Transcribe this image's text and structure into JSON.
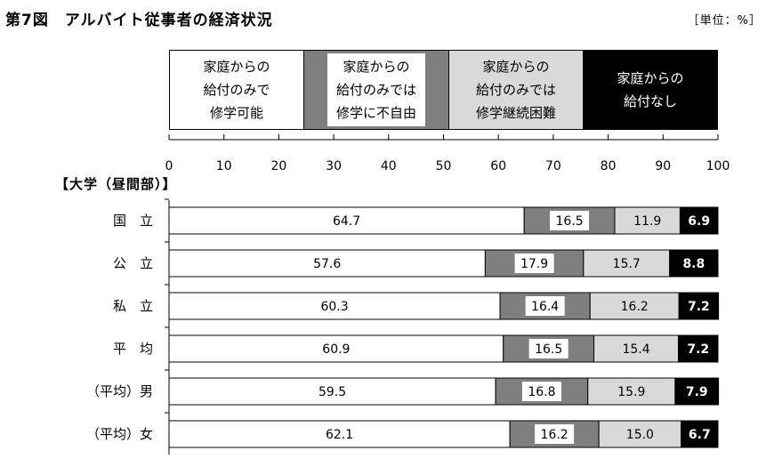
{
  "title": "第7図　アルバイト従事者の経済状況",
  "unit": "［単位：%］",
  "legend": [
    {
      "label": "家庭からの\n給付のみで\n修学可能",
      "color": "#ffffff"
    },
    {
      "label": "家庭からの\n給付のみでは\n修学に不自由",
      "color": "#7f7f7f"
    },
    {
      "label": "家庭からの\n給付のみでは\n修学継続困難",
      "color": "#d9d9d9"
    },
    {
      "label": "家庭からの\n給付なし",
      "color": "#000000"
    }
  ],
  "section_label": "【大学（昼間部）】",
  "chart_data": {
    "type": "bar",
    "orientation": "horizontal",
    "stacked": true,
    "xlim": [
      0,
      100
    ],
    "xticks": [
      0,
      10,
      20,
      30,
      40,
      50,
      60,
      70,
      80,
      90,
      100
    ],
    "categories": [
      "国　立",
      "公　立",
      "私　立",
      "平　均",
      "（平均）男",
      "（平均）女"
    ],
    "series": [
      {
        "name": "家庭からの給付のみで修学可能",
        "color": "#ffffff",
        "values": [
          64.7,
          57.6,
          60.3,
          60.9,
          59.5,
          62.1
        ]
      },
      {
        "name": "家庭からの給付のみでは修学に不自由",
        "color": "#7f7f7f",
        "values": [
          16.5,
          17.9,
          16.4,
          16.5,
          16.8,
          16.2
        ]
      },
      {
        "name": "家庭からの給付のみでは修学継続困難",
        "color": "#d9d9d9",
        "values": [
          11.9,
          15.7,
          16.2,
          15.4,
          15.9,
          15.0
        ]
      },
      {
        "name": "家庭からの給付なし",
        "color": "#000000",
        "values": [
          6.9,
          8.8,
          7.2,
          7.2,
          7.9,
          6.7
        ]
      }
    ],
    "grid": false
  }
}
